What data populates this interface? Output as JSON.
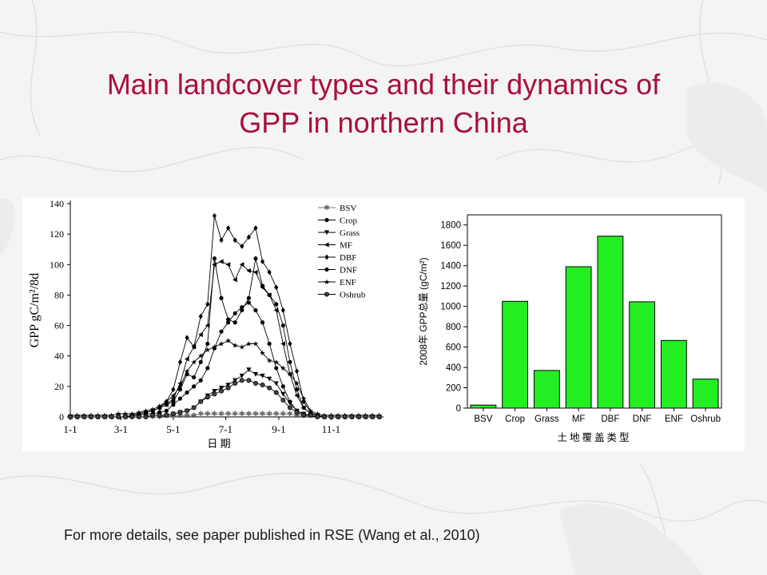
{
  "slide": {
    "title_line1": "Main landcover types and their dynamics of",
    "title_line2": "GPP in northern China",
    "footnote": "For more details, see paper published in RSE (Wang et al., 2010)"
  },
  "colors": {
    "title": "#a8103a",
    "bar_fill": "#22ee22",
    "background": "#f4f4f5"
  },
  "chart_data": [
    {
      "type": "line",
      "xlabel": "日 期",
      "ylabel": "GPP gC/m²/8d",
      "ylim": [
        0,
        140
      ],
      "yticks": [
        0,
        20,
        40,
        60,
        80,
        100,
        120,
        140
      ],
      "xlim": [
        1,
        366
      ],
      "x_tick_labels": [
        "1-1",
        "3-1",
        "5-1",
        "7-1",
        "9-1",
        "11-1"
      ],
      "x_tick_days": [
        1,
        60,
        121,
        182,
        244,
        305
      ],
      "legend_position": "top-right",
      "x": [
        1,
        9,
        17,
        25,
        33,
        41,
        49,
        57,
        65,
        73,
        81,
        89,
        97,
        105,
        113,
        121,
        129,
        137,
        145,
        153,
        161,
        169,
        177,
        185,
        193,
        201,
        209,
        217,
        225,
        233,
        241,
        249,
        257,
        265,
        273,
        281,
        289,
        297,
        305,
        313,
        321,
        329,
        337,
        345,
        353,
        361
      ],
      "series": [
        {
          "name": "BSV",
          "marker": "star-x",
          "values": [
            0,
            0,
            0,
            0,
            0,
            0,
            0,
            0,
            0,
            0,
            0,
            0,
            0,
            0,
            1,
            1,
            1,
            1,
            1,
            2,
            2,
            2,
            2,
            2,
            2,
            2,
            2,
            2,
            2,
            2,
            2,
            2,
            2,
            1,
            1,
            1,
            0,
            0,
            0,
            0,
            0,
            0,
            0,
            0,
            0,
            0
          ]
        },
        {
          "name": "Crop",
          "marker": "circle",
          "values": [
            0,
            0,
            0,
            0,
            0,
            0,
            0,
            0,
            0,
            1,
            1,
            2,
            2,
            3,
            4,
            8,
            12,
            16,
            20,
            24,
            32,
            45,
            56,
            62,
            68,
            72,
            75,
            70,
            62,
            48,
            32,
            20,
            10,
            4,
            2,
            1,
            0,
            0,
            0,
            0,
            0,
            0,
            0,
            0,
            0,
            0
          ]
        },
        {
          "name": "Grass",
          "marker": "triangle-down",
          "values": [
            0,
            0,
            0,
            0,
            0,
            0,
            0,
            0,
            0,
            0,
            0,
            0,
            1,
            1,
            1,
            2,
            3,
            4,
            6,
            10,
            14,
            17,
            19,
            21,
            24,
            27,
            31,
            28,
            27,
            25,
            22,
            15,
            9,
            4,
            2,
            1,
            0,
            0,
            0,
            0,
            0,
            0,
            0,
            0,
            0,
            0
          ]
        },
        {
          "name": "MF",
          "marker": "triangle-left",
          "values": [
            0,
            0,
            0,
            0,
            0,
            0,
            0,
            0,
            0,
            1,
            2,
            3,
            4,
            6,
            8,
            12,
            22,
            38,
            46,
            54,
            60,
            100,
            102,
            100,
            90,
            100,
            96,
            95,
            85,
            80,
            70,
            48,
            28,
            14,
            6,
            2,
            1,
            0,
            0,
            0,
            0,
            0,
            0,
            0,
            0,
            0
          ]
        },
        {
          "name": "DBF",
          "marker": "diamond",
          "values": [
            0,
            0,
            0,
            0,
            0,
            0,
            0,
            0,
            0,
            1,
            2,
            3,
            4,
            6,
            10,
            18,
            36,
            52,
            46,
            66,
            74,
            132,
            116,
            124,
            116,
            112,
            118,
            124,
            102,
            95,
            85,
            70,
            48,
            30,
            10,
            3,
            1,
            0,
            0,
            0,
            0,
            0,
            0,
            0,
            0,
            0
          ]
        },
        {
          "name": "DNF",
          "marker": "circle",
          "values": [
            0,
            0,
            0,
            0,
            0,
            0,
            0,
            0,
            0,
            1,
            2,
            3,
            4,
            6,
            8,
            10,
            18,
            28,
            26,
            36,
            48,
            104,
            78,
            64,
            62,
            70,
            78,
            104,
            86,
            80,
            74,
            60,
            36,
            18,
            6,
            2,
            1,
            0,
            0,
            0,
            0,
            0,
            0,
            0,
            0,
            0
          ]
        },
        {
          "name": "ENF",
          "marker": "star",
          "values": [
            1,
            1,
            1,
            1,
            1,
            1,
            1,
            2,
            2,
            2,
            3,
            4,
            5,
            7,
            10,
            14,
            20,
            30,
            36,
            40,
            44,
            46,
            48,
            50,
            47,
            46,
            48,
            48,
            42,
            37,
            36,
            32,
            28,
            22,
            12,
            4,
            2,
            1,
            1,
            1,
            1,
            1,
            1,
            1,
            1,
            1
          ]
        },
        {
          "name": "Oshrub",
          "marker": "circle-half",
          "values": [
            0,
            0,
            0,
            0,
            0,
            0,
            0,
            0,
            0,
            0,
            0,
            0,
            1,
            1,
            1,
            2,
            3,
            4,
            6,
            10,
            13,
            15,
            17,
            19,
            22,
            24,
            24,
            22,
            21,
            19,
            16,
            11,
            6,
            3,
            1,
            1,
            0,
            0,
            0,
            0,
            0,
            0,
            0,
            0,
            0,
            0
          ]
        }
      ]
    },
    {
      "type": "bar",
      "categories": [
        "BSV",
        "Crop",
        "Grass",
        "MF",
        "DBF",
        "DNF",
        "ENF",
        "Oshrub"
      ],
      "values": [
        30,
        1050,
        370,
        1390,
        1690,
        1045,
        665,
        285
      ],
      "xlabel": "土地覆盖类型",
      "ylabel": "2008年 GPP总量 (gC/m²)",
      "ylim": [
        0,
        1900
      ],
      "yticks": [
        0,
        200,
        400,
        600,
        800,
        1000,
        1200,
        1400,
        1600,
        1800
      ]
    }
  ]
}
